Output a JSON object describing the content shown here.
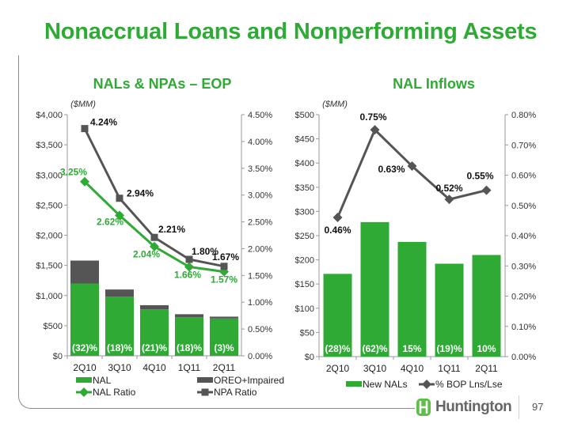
{
  "title": "Nonaccrual Loans and Nonperforming Assets",
  "colors": {
    "green": "#2eaa35",
    "dark_gray": "#555555",
    "axis": "#999999"
  },
  "footer": {
    "logo_text": "Huntington",
    "page_number": "97"
  },
  "chart_data": [
    {
      "type": "bar",
      "title": "NALs & NPAs – EOP",
      "stacked": true,
      "unit_label": "($MM)",
      "categories": [
        "2Q10",
        "3Q10",
        "4Q10",
        "1Q11",
        "2Q11"
      ],
      "ylim": [
        0,
        4000
      ],
      "y_ticks": [
        "$0",
        "$500",
        "$1,000",
        "$1,500",
        "$2,000",
        "$2,500",
        "$3,000",
        "$3,500",
        "$4,000"
      ],
      "y2lim": [
        0,
        4.5
      ],
      "y2_ticks": [
        "0.00%",
        "0.50%",
        "1.00%",
        "1.50%",
        "2.00%",
        "2.50%",
        "3.00%",
        "3.50%",
        "4.00%",
        "4.50%"
      ],
      "series": [
        {
          "name": "NAL",
          "kind": "bar",
          "color": "#2eaa35",
          "values": [
            1200,
            980,
            770,
            640,
            620
          ]
        },
        {
          "name": "OREO+Impaired",
          "kind": "bar",
          "color": "#555555",
          "values": [
            380,
            120,
            70,
            50,
            30
          ]
        },
        {
          "name": "NAL Ratio",
          "kind": "line",
          "axis": "right",
          "color": "#2eaa35",
          "marker": "diamond",
          "values": [
            3.25,
            2.62,
            2.04,
            1.66,
            1.57
          ],
          "labels": [
            "3.25%",
            "2.62%",
            "2.04%",
            "1.66%",
            "1.57%"
          ]
        },
        {
          "name": "NPA Ratio",
          "kind": "line",
          "axis": "right",
          "color": "#555555",
          "marker": "square",
          "values": [
            4.24,
            2.94,
            2.21,
            1.8,
            1.67
          ],
          "labels": [
            "4.24%",
            "2.94%",
            "2.21%",
            "1.80%",
            "1.67%"
          ]
        }
      ],
      "bar_labels": [
        "(32)%",
        "(18)%",
        "(21)%",
        "(18)%",
        "(3)%"
      ],
      "legend": "bottom"
    },
    {
      "type": "bar",
      "title": "NAL Inflows",
      "unit_label": "($MM)",
      "categories": [
        "2Q10",
        "3Q10",
        "4Q10",
        "1Q11",
        "2Q11"
      ],
      "ylim": [
        0,
        500
      ],
      "y_ticks": [
        "$0",
        "$50",
        "$100",
        "$150",
        "$200",
        "$250",
        "$300",
        "$350",
        "$400",
        "$450",
        "$500"
      ],
      "y2lim": [
        0,
        0.8
      ],
      "y2_ticks": [
        "0.00%",
        "0.10%",
        "0.20%",
        "0.30%",
        "0.40%",
        "0.50%",
        "0.60%",
        "0.70%",
        "0.80%"
      ],
      "series": [
        {
          "name": "New NALs",
          "kind": "bar",
          "color": "#2eaa35",
          "values": [
            171,
            278,
            237,
            192,
            210
          ]
        },
        {
          "name": "% BOP Lns/Lse",
          "kind": "line",
          "axis": "right",
          "color": "#555555",
          "marker": "diamond",
          "values": [
            0.46,
            0.75,
            0.63,
            0.52,
            0.55
          ],
          "labels": [
            "0.46%",
            "0.75%",
            "0.63%",
            "0.52%",
            "0.55%"
          ]
        }
      ],
      "bar_labels": [
        "(28)%",
        "(62)%",
        "15%",
        "(19)%",
        "10%"
      ],
      "legend": "bottom"
    }
  ]
}
